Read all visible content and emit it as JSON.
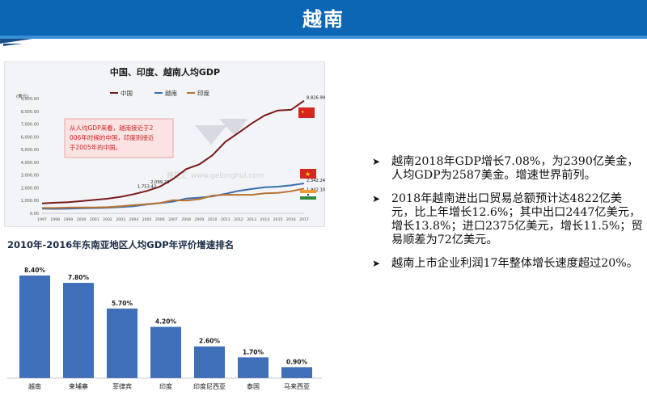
{
  "slide": {
    "title": "越南"
  },
  "bullets": [
    {
      "icon": "arrowhead-bullet-icon",
      "text": "越南2018年GDP增长7.08%，为2390亿美金，人均GDP为2587美金。增速世界前列。"
    },
    {
      "icon": "arrowhead-bullet-icon",
      "text": "2018年越南进出口贸易总额预计达4822亿美元，比上年增长12.6%；其中出口2447亿美元，增长13.8%；进口2375亿美元，增长11.5%；贸易顺差为72亿美元。"
    },
    {
      "icon": "arrowhead-bullet-icon",
      "text": "越南上市企业利润17年整体增长速度超过20%。"
    }
  ],
  "chart_data": [
    {
      "type": "line",
      "title": "中国、印度、越南人均GDP",
      "ylabel": "(美元)",
      "ylim": [
        0,
        9000
      ],
      "yticks": [
        "0.00",
        "1,000.00",
        "2,000.00",
        "3,000.00",
        "4,000.00",
        "5,000.00",
        "6,000.00",
        "7,000.00",
        "8,000.00",
        "9,000.00"
      ],
      "x": [
        "1997",
        "1998",
        "1999",
        "2000",
        "2001",
        "2002",
        "2003",
        "2004",
        "2005",
        "2006",
        "2007",
        "2008",
        "2009",
        "2010",
        "2011",
        "2012",
        "2013",
        "2014",
        "2015",
        "2016",
        "2017"
      ],
      "series": [
        {
          "name": "中国",
          "color": "#7b1a1a",
          "values": [
            780,
            830,
            870,
            960,
            1050,
            1150,
            1290,
            1500,
            1753,
            2099,
            2694,
            3468,
            3832,
            4550,
            5618,
            6317,
            7051,
            7684,
            8069,
            8120,
            8826
          ]
        },
        {
          "name": "越南",
          "color": "#3a6fb0",
          "values": [
            360,
            350,
            360,
            390,
            410,
            440,
            490,
            550,
            700,
            800,
            920,
            1160,
            1230,
            1330,
            1530,
            1760,
            1910,
            2050,
            2090,
            2190,
            2342
          ]
        },
        {
          "name": "印度",
          "color": "#b87333",
          "values": [
            420,
            420,
            450,
            460,
            460,
            480,
            560,
            640,
            720,
            810,
            1030,
            1000,
            1110,
            1390,
            1460,
            1450,
            1450,
            1570,
            1600,
            1730,
            1942
          ]
        }
      ],
      "data_labels": [
        {
          "series": "中国",
          "x": "2005",
          "text": "1,753.42"
        },
        {
          "series": "中国",
          "x": "2006",
          "text": "2,099.23"
        },
        {
          "series": "中国",
          "x": "2017",
          "text": "8,826.99"
        },
        {
          "series": "越南",
          "x": "2017",
          "text": "2,342.24"
        },
        {
          "series": "印度",
          "x": "2017",
          "text": "1,942.10"
        }
      ],
      "annotation": "从人均GDP来看，越南接近于2006年时候的中国，印度则接近于2005年的中国。",
      "watermark": "格隆汇 www.gelonghui.com",
      "legend": "top-center",
      "grid": false
    },
    {
      "type": "bar",
      "title": "2010年-2016年东南亚地区人均GDP年评价增速排名",
      "categories": [
        "越南",
        "柬埔寨",
        "菲律宾",
        "印度",
        "印度尼西亚",
        "泰国",
        "马来西亚"
      ],
      "values": [
        8.4,
        7.8,
        5.7,
        4.2,
        2.6,
        1.7,
        0.9
      ],
      "labels": [
        "8.40%",
        "7.80%",
        "5.70%",
        "4.20%",
        "2.60%",
        "1.70%",
        "0.90%"
      ],
      "ylim": [
        0,
        8.4
      ],
      "bar_color": "#3e6fb8",
      "grid": false
    }
  ]
}
